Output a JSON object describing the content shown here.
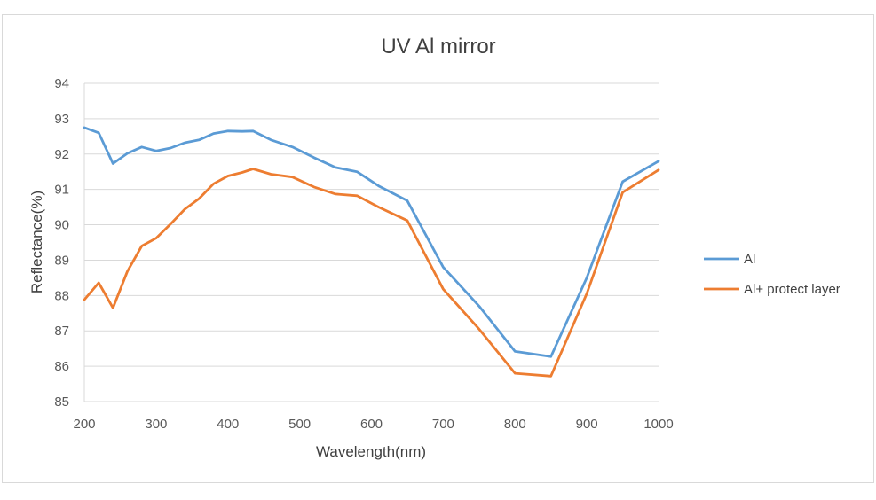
{
  "chart_data": {
    "type": "line",
    "title": "UV Al mirror",
    "xlabel": "Wavelength(nm)",
    "ylabel": "Reflectance(%)",
    "xlim": [
      200,
      1000
    ],
    "ylim": [
      85,
      94
    ],
    "xticks": [
      200,
      300,
      400,
      500,
      600,
      700,
      800,
      900,
      1000
    ],
    "yticks": [
      85,
      86,
      87,
      88,
      89,
      90,
      91,
      92,
      93,
      94
    ],
    "grid": true,
    "legend_position": "right",
    "series": [
      {
        "name": "Al",
        "color": "#5b9bd5",
        "x": [
          200,
          220,
          240,
          260,
          280,
          300,
          320,
          340,
          360,
          380,
          400,
          420,
          435,
          460,
          490,
          520,
          550,
          580,
          610,
          650,
          700,
          750,
          800,
          850,
          900,
          950,
          1000
        ],
        "y": [
          92.75,
          92.6,
          91.73,
          92.02,
          92.2,
          92.09,
          92.17,
          92.32,
          92.4,
          92.58,
          92.65,
          92.64,
          92.65,
          92.4,
          92.2,
          91.9,
          91.62,
          91.5,
          91.1,
          90.68,
          88.8,
          87.7,
          86.42,
          86.27,
          88.5,
          91.22,
          91.8
        ]
      },
      {
        "name": "Al+ protect layer",
        "color": "#ed7d31",
        "x": [
          200,
          220,
          240,
          260,
          280,
          300,
          320,
          340,
          360,
          380,
          400,
          420,
          435,
          460,
          490,
          520,
          550,
          580,
          610,
          650,
          700,
          750,
          800,
          850,
          900,
          950,
          1000
        ],
        "y": [
          87.88,
          88.36,
          87.65,
          88.68,
          89.4,
          89.62,
          90.02,
          90.44,
          90.74,
          91.16,
          91.38,
          91.48,
          91.58,
          91.43,
          91.35,
          91.07,
          90.87,
          90.82,
          90.5,
          90.12,
          88.18,
          87.05,
          85.8,
          85.72,
          88.05,
          90.92,
          91.55
        ]
      }
    ]
  }
}
